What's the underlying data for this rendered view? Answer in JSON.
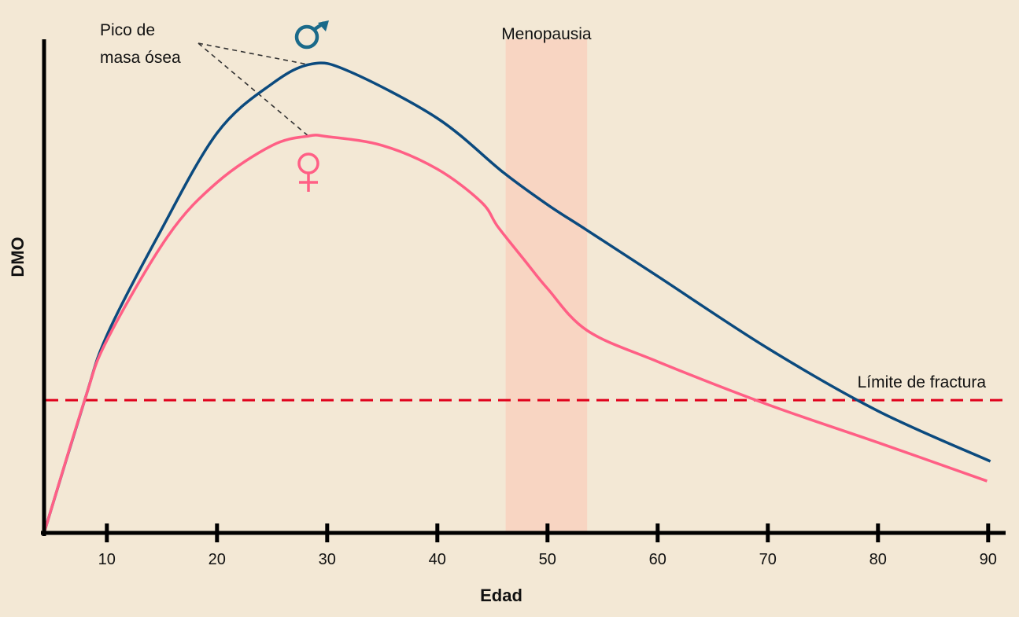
{
  "chart_data": {
    "type": "line",
    "title": "",
    "xlabel": "Edad",
    "ylabel": "DMO",
    "xlim": [
      4.3,
      92
    ],
    "ylim": [
      0,
      100
    ],
    "x_ticks": [
      10,
      20,
      30,
      40,
      50,
      60,
      70,
      80,
      90
    ],
    "grid": false,
    "series": [
      {
        "name": "♂",
        "color": "#0b4a7e",
        "points": [
          [
            4.3,
            0
          ],
          [
            8,
            27
          ],
          [
            10,
            40
          ],
          [
            14.6,
            60
          ],
          [
            20,
            81
          ],
          [
            25,
            91
          ],
          [
            28.6,
            95
          ],
          [
            32,
            93.5
          ],
          [
            40,
            84
          ],
          [
            46,
            73
          ],
          [
            50,
            66.5
          ],
          [
            53.6,
            61.3
          ],
          [
            60,
            52
          ],
          [
            70,
            37.4
          ],
          [
            80,
            24.7
          ],
          [
            90.2,
            14.5
          ]
        ]
      },
      {
        "name": "♀",
        "color": "#ff5f85",
        "points": [
          [
            4.3,
            0
          ],
          [
            8,
            27
          ],
          [
            10,
            39
          ],
          [
            15.5,
            60
          ],
          [
            20,
            71
          ],
          [
            25,
            78.5
          ],
          [
            28.3,
            80.4
          ],
          [
            30,
            80.3
          ],
          [
            35,
            78.5
          ],
          [
            40,
            73.7
          ],
          [
            44,
            67
          ],
          [
            45.5,
            62
          ],
          [
            48,
            55
          ],
          [
            50,
            49.5
          ],
          [
            53.6,
            41
          ],
          [
            60,
            34.7
          ],
          [
            70,
            26
          ],
          [
            80,
            18.3
          ],
          [
            89.9,
            10.5
          ]
        ]
      }
    ],
    "reference_line": {
      "label": "Límite de fractura",
      "value": 26.9,
      "color": "#e0001b"
    },
    "shaded_band": {
      "label": "Menopausia",
      "from": 46.2,
      "to": 53.6,
      "color": "#f8d5c2"
    },
    "annotation": {
      "text_line1": "Pico de",
      "text_line2": "masa ósea"
    },
    "male_symbol": "♂",
    "female_symbol": "♀",
    "background": "#f3e8d5"
  }
}
